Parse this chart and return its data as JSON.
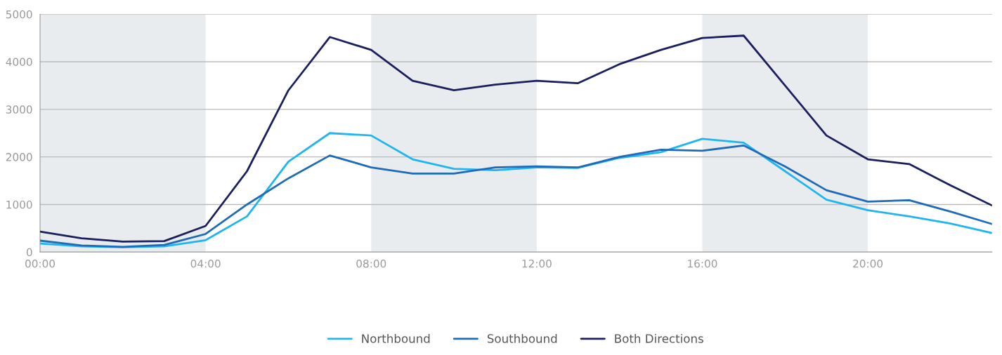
{
  "chart_data": {
    "type": "line",
    "x": [
      0,
      1,
      2,
      3,
      4,
      5,
      6,
      7,
      8,
      9,
      10,
      11,
      12,
      13,
      14,
      15,
      16,
      17,
      18,
      19,
      20,
      21,
      22,
      23
    ],
    "series": [
      {
        "name": "Northbound",
        "color": "#1fb5ef",
        "values": [
          180,
          120,
          100,
          120,
          250,
          750,
          1900,
          2500,
          2450,
          1950,
          1750,
          1720,
          1780,
          1770,
          1980,
          2100,
          2380,
          2300,
          1700,
          1100,
          880,
          750,
          600,
          400
        ]
      },
      {
        "name": "Southbound",
        "color": "#1e6bb8",
        "values": [
          240,
          140,
          110,
          150,
          380,
          1000,
          1550,
          2030,
          1780,
          1650,
          1650,
          1780,
          1800,
          1780,
          2000,
          2150,
          2130,
          2240,
          1800,
          1300,
          1060,
          1090,
          850,
          590
        ]
      },
      {
        "name": "Both Directions",
        "color": "#1c1f5e",
        "values": [
          430,
          290,
          220,
          230,
          550,
          1700,
          3400,
          4520,
          4250,
          3600,
          3400,
          3520,
          3600,
          3550,
          3950,
          4250,
          4500,
          4550,
          3500,
          2450,
          1950,
          1850,
          1400,
          980
        ]
      }
    ],
    "xlim": [
      0,
      23
    ],
    "xticks": [
      {
        "value": 0,
        "label": "00:00"
      },
      {
        "value": 4,
        "label": "04:00"
      },
      {
        "value": 8,
        "label": "08:00"
      },
      {
        "value": 12,
        "label": "12:00"
      },
      {
        "value": 16,
        "label": "16:00"
      },
      {
        "value": 20,
        "label": "20:00"
      }
    ],
    "ylim": [
      0,
      5000
    ],
    "yticks": [
      0,
      1000,
      2000,
      3000,
      4000,
      5000
    ],
    "bands": [
      {
        "axis": "x",
        "from": 0,
        "to": 4,
        "color": "#e9ecef"
      },
      {
        "axis": "x",
        "from": 8,
        "to": 12,
        "color": "#e9ecef"
      },
      {
        "axis": "x",
        "from": 16,
        "to": 20,
        "color": "#e9ecef"
      }
    ],
    "grid": "y",
    "legend": "bottom",
    "line_style": "solid",
    "marker": "none"
  }
}
